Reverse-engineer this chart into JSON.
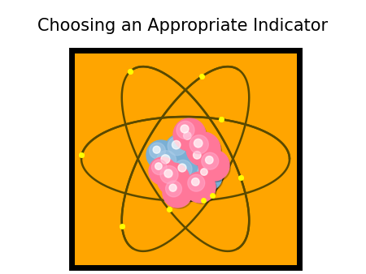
{
  "title": "Choosing an Appropriate Indicator",
  "title_fontsize": 15,
  "bg_color": "#ffffff",
  "box_bg": "#FFA500",
  "box_edge": "#000000",
  "orbit_color": "#5a4a00",
  "electron_color": "#ffff00",
  "nucleus_blue": "#7aafd4",
  "nucleus_blue2": "#aacce8",
  "nucleus_pink": "#ff7799",
  "nucleus_pink2": "#ffaacc",
  "nucleus_white": "#e8e8ff"
}
